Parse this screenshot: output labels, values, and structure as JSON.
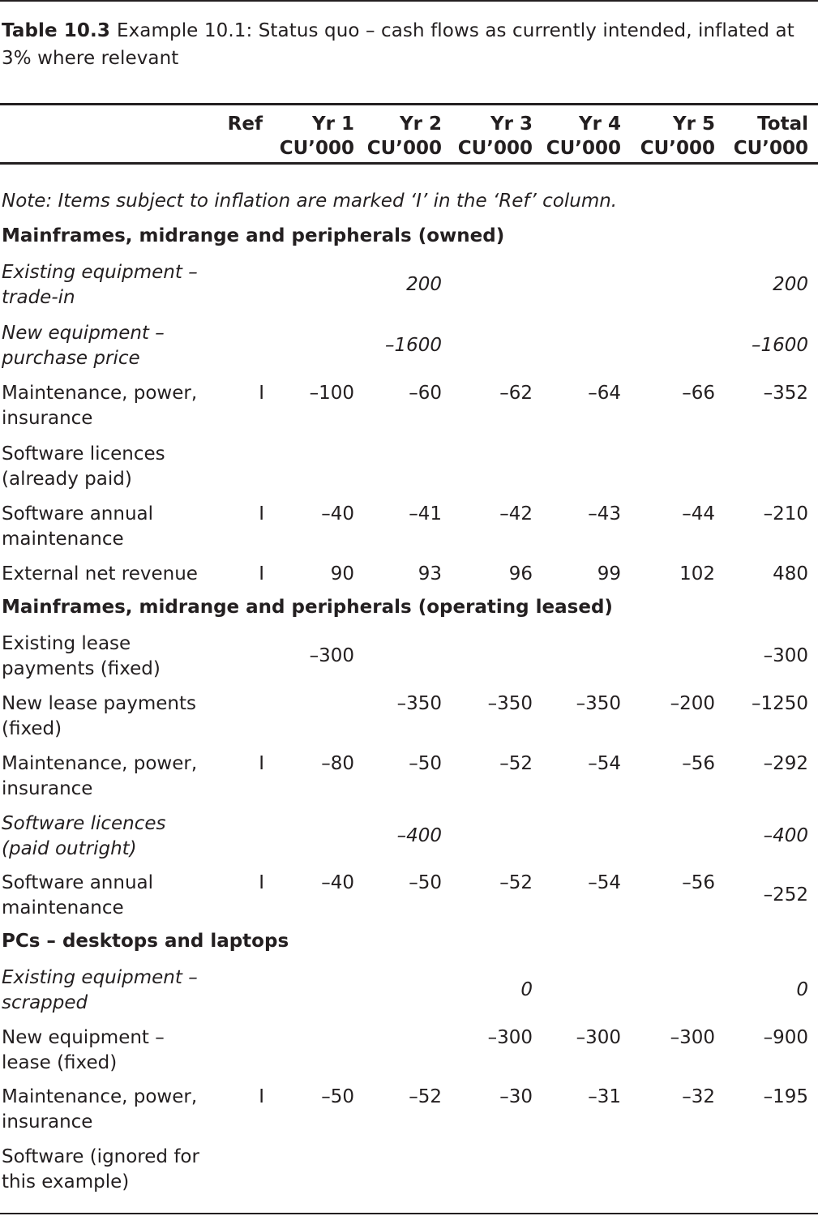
{
  "caption": {
    "number": "Table 10.3",
    "text": "Example 10.1: Status quo – cash flows as currently intended, inflated at 3% where relevant"
  },
  "header": {
    "ref": "Ref",
    "unit": "CU’000",
    "cols": [
      "Yr 1",
      "Yr 2",
      "Yr 3",
      "Yr 4",
      "Yr 5",
      "Total"
    ]
  },
  "note": "Note: Items subject to inflation are marked ‘I’ in the ‘Ref’ column.",
  "sections": [
    {
      "title": "Mainframes, midrange and peripherals (owned)",
      "rows": [
        {
          "label": "Existing equipment – trade-in",
          "ref": "",
          "italic": true,
          "values": [
            "",
            "200",
            "",
            "",
            "",
            "200"
          ]
        },
        {
          "label": "New equipment – purchase price",
          "ref": "",
          "italic": true,
          "values": [
            "",
            "–1600",
            "",
            "",
            "",
            "–1600"
          ]
        },
        {
          "label": "Maintenance, power, insurance",
          "ref": "I",
          "italic": false,
          "values": [
            "–100",
            "–60",
            "–62",
            "–64",
            "–66",
            "–352"
          ]
        },
        {
          "label": "Software licences (already paid)",
          "ref": "",
          "italic": false,
          "values": [
            "",
            "",
            "",
            "",
            "",
            ""
          ]
        },
        {
          "label": "Software annual maintenance",
          "ref": "I",
          "italic": false,
          "values": [
            "–40",
            "–41",
            "–42",
            "–43",
            "–44",
            "–210"
          ]
        },
        {
          "label": "External net revenue",
          "ref": "I",
          "italic": false,
          "values": [
            "90",
            "93",
            "96",
            "99",
            "102",
            "480"
          ]
        }
      ]
    },
    {
      "title": "Mainframes, midrange and peripherals (operating leased)",
      "rows": [
        {
          "label": "Existing lease payments (fixed)",
          "ref": "",
          "italic": false,
          "values": [
            "–300",
            "",
            "",
            "",
            "",
            "–300"
          ]
        },
        {
          "label": "New lease payments (fixed)",
          "ref": "",
          "italic": false,
          "values": [
            "",
            "–350",
            "–350",
            "–350",
            "–200",
            "–1250"
          ]
        },
        {
          "label": "Maintenance, power, insurance",
          "ref": "I",
          "italic": false,
          "values": [
            "–80",
            "–50",
            "–52",
            "–54",
            "–56",
            "–292"
          ]
        },
        {
          "label": "Software licences (paid outright)",
          "ref": "",
          "italic": true,
          "values": [
            "",
            "–400",
            "",
            "",
            "",
            "–400"
          ]
        },
        {
          "label": "Software annual maintenance",
          "ref": "I",
          "italic": false,
          "values": [
            "–40",
            "–50",
            "–52",
            "–54",
            "–56",
            "–252"
          ]
        }
      ]
    },
    {
      "title": "PCs – desktops and laptops",
      "rows": [
        {
          "label": "Existing equipment – scrapped",
          "ref": "",
          "italic": true,
          "values": [
            "",
            "",
            "0",
            "",
            "",
            "0"
          ]
        },
        {
          "label": "New equipment – lease (fixed)",
          "ref": "",
          "italic": false,
          "values": [
            "",
            "",
            "–300",
            "–300",
            "–300",
            "–900"
          ]
        },
        {
          "label": "Maintenance, power, insurance",
          "ref": "I",
          "italic": false,
          "values": [
            "–50",
            "–52",
            "–30",
            "–31",
            "–32",
            "–195"
          ]
        },
        {
          "label": "Software (ignored for this example)",
          "ref": "",
          "italic": false,
          "values": [
            "",
            "",
            "",
            "",
            "",
            ""
          ]
        }
      ]
    }
  ]
}
